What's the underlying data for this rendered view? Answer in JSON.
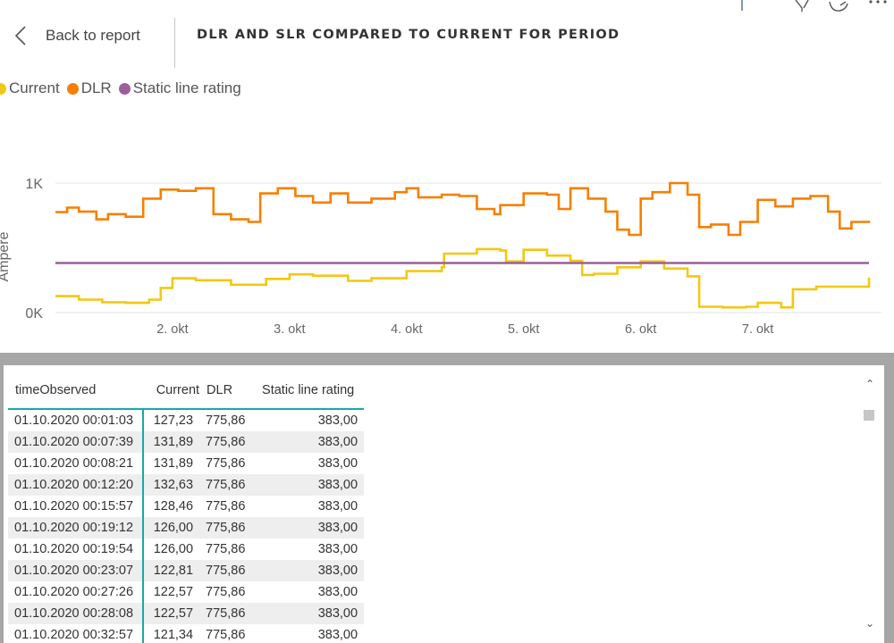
{
  "header": {
    "back_label": "Back to report",
    "title": "DLR AND SLR COMPARED TO CURRENT FOR PERIOD"
  },
  "legend": [
    {
      "label": "Current",
      "color": "#f2c811"
    },
    {
      "label": "DLR",
      "color": "#f77f00"
    },
    {
      "label": "Static line rating",
      "color": "#9b5f9b"
    }
  ],
  "chart_data": {
    "type": "line",
    "ylabel": "Ampere",
    "y_ticks": [
      "0K",
      "1K"
    ],
    "ylim": [
      0,
      1000
    ],
    "x_ticks": [
      "2. okt",
      "3. okt",
      "4. okt",
      "5. okt",
      "6. okt",
      "7. okt"
    ],
    "x_range_days": [
      1.0,
      7.95
    ],
    "grid": true,
    "series": [
      {
        "name": "Current",
        "color": "#f2c811",
        "x": [
          1.0,
          1.2,
          1.4,
          1.6,
          1.8,
          1.9,
          2.0,
          2.2,
          2.5,
          2.8,
          3.0,
          3.2,
          3.5,
          3.7,
          4.0,
          4.3,
          4.32,
          4.6,
          4.8,
          4.85,
          5.0,
          5.2,
          5.4,
          5.5,
          5.6,
          5.8,
          6.0,
          6.2,
          6.4,
          6.5,
          6.7,
          6.9,
          7.0,
          7.2,
          7.3,
          7.5,
          7.95
        ],
        "y": [
          127,
          100,
          80,
          75,
          100,
          190,
          265,
          250,
          215,
          260,
          295,
          285,
          245,
          265,
          320,
          350,
          455,
          490,
          480,
          395,
          485,
          440,
          400,
          290,
          300,
          350,
          395,
          340,
          280,
          45,
          40,
          45,
          75,
          40,
          180,
          200,
          270
        ]
      },
      {
        "name": "DLR",
        "color": "#f77f00",
        "x": [
          1.0,
          1.1,
          1.2,
          1.35,
          1.45,
          1.6,
          1.75,
          1.9,
          2.05,
          2.2,
          2.35,
          2.5,
          2.65,
          2.75,
          2.9,
          3.05,
          3.2,
          3.35,
          3.5,
          3.7,
          3.9,
          4.0,
          4.1,
          4.3,
          4.45,
          4.6,
          4.75,
          4.8,
          5.0,
          5.2,
          5.3,
          5.4,
          5.55,
          5.7,
          5.8,
          5.9,
          6.0,
          6.1,
          6.25,
          6.4,
          6.5,
          6.6,
          6.75,
          6.85,
          7.0,
          7.15,
          7.3,
          7.45,
          7.6,
          7.7,
          7.8,
          7.95
        ],
        "y": [
          776,
          810,
          780,
          720,
          760,
          740,
          880,
          950,
          940,
          960,
          760,
          720,
          700,
          920,
          960,
          900,
          850,
          920,
          850,
          880,
          930,
          960,
          890,
          910,
          900,
          800,
          760,
          830,
          920,
          910,
          800,
          960,
          880,
          780,
          640,
          600,
          880,
          930,
          1000,
          910,
          660,
          680,
          600,
          700,
          870,
          820,
          880,
          900,
          780,
          650,
          700,
          710
        ]
      },
      {
        "name": "Static line rating",
        "color": "#9b5f9b",
        "x": [
          1.0,
          7.95
        ],
        "y": [
          383,
          383
        ]
      }
    ]
  },
  "table": {
    "headers": [
      "timeObserved",
      "Current",
      "DLR",
      "Static line rating"
    ],
    "rows": [
      [
        "01.10.2020 00:01:03",
        "127,23",
        "775,86",
        "383,00"
      ],
      [
        "01.10.2020 00:07:39",
        "131,89",
        "775,86",
        "383,00"
      ],
      [
        "01.10.2020 00:08:21",
        "131,89",
        "775,86",
        "383,00"
      ],
      [
        "01.10.2020 00:12:20",
        "132,63",
        "775,86",
        "383,00"
      ],
      [
        "01.10.2020 00:15:57",
        "128,46",
        "775,86",
        "383,00"
      ],
      [
        "01.10.2020 00:19:12",
        "126,00",
        "775,86",
        "383,00"
      ],
      [
        "01.10.2020 00:19:54",
        "126,00",
        "775,86",
        "383,00"
      ],
      [
        "01.10.2020 00:23:07",
        "122,81",
        "775,86",
        "383,00"
      ],
      [
        "01.10.2020 00:27:26",
        "122,57",
        "775,86",
        "383,00"
      ],
      [
        "01.10.2020 00:28:08",
        "122,57",
        "775,86",
        "383,00"
      ],
      [
        "01.10.2020 00:32:57",
        "121,34",
        "775,86",
        "383,00"
      ]
    ]
  },
  "scrollbar": {
    "up_icon": "chevron-up-icon",
    "down_icon": "chevron-down-icon"
  }
}
